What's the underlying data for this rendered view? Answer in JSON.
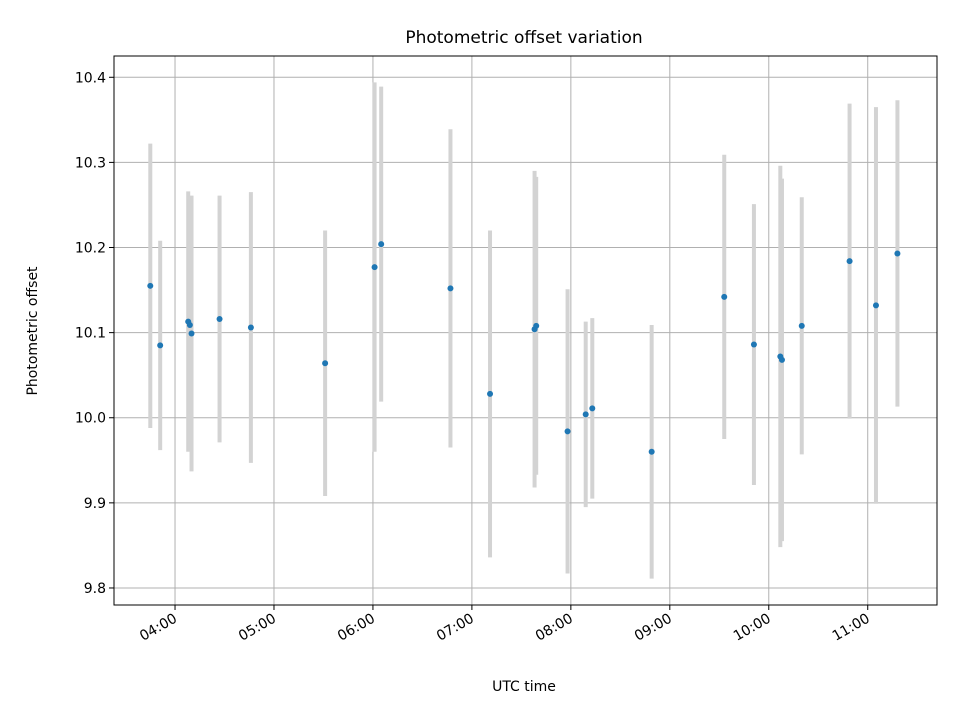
{
  "chart_data": {
    "type": "scatter",
    "title": "Photometric offset variation",
    "xlabel": "UTC time",
    "ylabel": "Photometric offset",
    "xlim": [
      "03:23",
      "11:42"
    ],
    "ylim": [
      9.78,
      10.425
    ],
    "x_ticks": [
      "04:00",
      "05:00",
      "06:00",
      "07:00",
      "08:00",
      "09:00",
      "10:00",
      "11:00"
    ],
    "y_ticks": [
      9.8,
      9.9,
      10.0,
      10.1,
      10.2,
      10.3,
      10.4
    ],
    "grid": true,
    "point_color": "#1f77b4",
    "errorbar_color": "#d3d3d3",
    "points": [
      {
        "x": "03:45",
        "y": 10.155,
        "err": 0.167
      },
      {
        "x": "03:51",
        "y": 10.085,
        "err": 0.123
      },
      {
        "x": "04:08",
        "y": 10.113,
        "err": 0.153
      },
      {
        "x": "04:09",
        "y": 10.109,
        "err": 0.148
      },
      {
        "x": "04:10",
        "y": 10.099,
        "err": 0.162
      },
      {
        "x": "04:27",
        "y": 10.116,
        "err": 0.145
      },
      {
        "x": "04:46",
        "y": 10.106,
        "err": 0.159
      },
      {
        "x": "05:31",
        "y": 10.064,
        "err": 0.156
      },
      {
        "x": "06:01",
        "y": 10.177,
        "err": 0.217
      },
      {
        "x": "06:05",
        "y": 10.204,
        "err": 0.185
      },
      {
        "x": "06:47",
        "y": 10.152,
        "err": 0.187
      },
      {
        "x": "07:11",
        "y": 10.028,
        "err": 0.192
      },
      {
        "x": "07:38",
        "y": 10.104,
        "err": 0.186
      },
      {
        "x": "07:39",
        "y": 10.108,
        "err": 0.175
      },
      {
        "x": "07:58",
        "y": 9.984,
        "err": 0.167
      },
      {
        "x": "08:09",
        "y": 10.004,
        "err": 0.109
      },
      {
        "x": "08:13",
        "y": 10.011,
        "err": 0.106
      },
      {
        "x": "08:49",
        "y": 9.96,
        "err": 0.149
      },
      {
        "x": "09:33",
        "y": 10.142,
        "err": 0.167
      },
      {
        "x": "09:51",
        "y": 10.086,
        "err": 0.165
      },
      {
        "x": "10:07",
        "y": 10.072,
        "err": 0.224
      },
      {
        "x": "10:08",
        "y": 10.068,
        "err": 0.213
      },
      {
        "x": "10:20",
        "y": 10.108,
        "err": 0.151
      },
      {
        "x": "10:49",
        "y": 10.184,
        "err": 0.185
      },
      {
        "x": "11:05",
        "y": 10.132,
        "err": 0.233
      },
      {
        "x": "11:18",
        "y": 10.193,
        "err": 0.18
      }
    ]
  }
}
